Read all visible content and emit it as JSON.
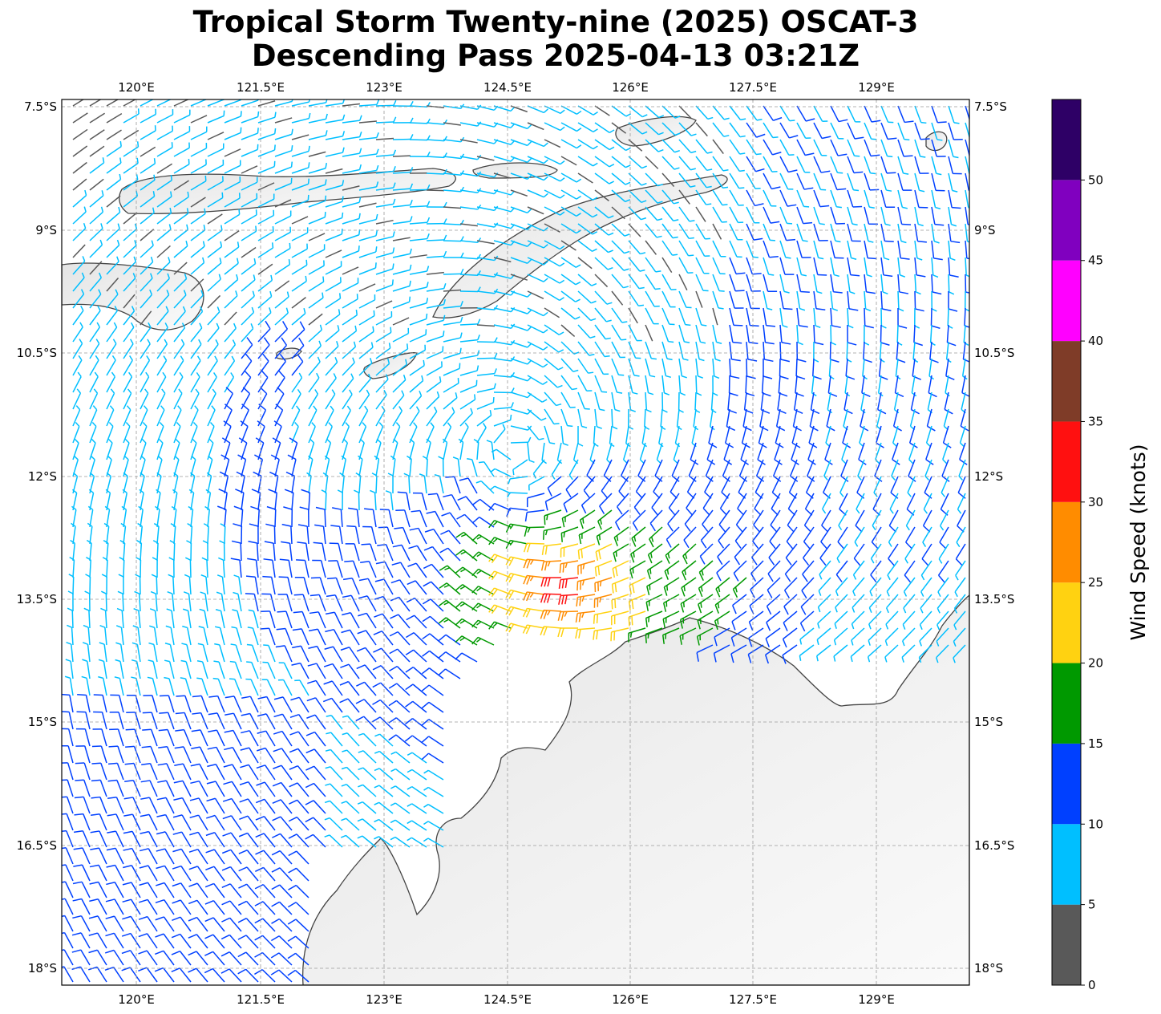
{
  "title_line1": "Tropical Storm Twenty-nine (2025) OSCAT-3",
  "title_line2": "Descending Pass 2025-04-13 03:21Z",
  "lon_ticks": [
    "120°E",
    "121.5°E",
    "123°E",
    "124.5°E",
    "126°E",
    "127.5°E",
    "129°E"
  ],
  "lat_ticks": [
    "7.5°S",
    "9°S",
    "10.5°S",
    "12°S",
    "13.5°S",
    "15°S",
    "16.5°S",
    "18°S"
  ],
  "colorbar": {
    "label": "Wind Speed (knots)",
    "ticks": [
      "0",
      "5",
      "10",
      "15",
      "20",
      "25",
      "30",
      "35",
      "40",
      "45",
      "50"
    ],
    "bins": [
      {
        "min": 0,
        "max": 5,
        "color": "#595959"
      },
      {
        "min": 5,
        "max": 10,
        "color": "#00bfff"
      },
      {
        "min": 10,
        "max": 15,
        "color": "#0040ff"
      },
      {
        "min": 15,
        "max": 20,
        "color": "#009900"
      },
      {
        "min": 20,
        "max": 25,
        "color": "#ffd211"
      },
      {
        "min": 25,
        "max": 30,
        "color": "#ff8c00"
      },
      {
        "min": 30,
        "max": 35,
        "color": "#ff1010"
      },
      {
        "min": 35,
        "max": 40,
        "color": "#7f3c28"
      },
      {
        "min": 40,
        "max": 45,
        "color": "#ff00ff"
      },
      {
        "min": 45,
        "max": 50,
        "color": "#8000bf"
      },
      {
        "min": 50,
        "max": 55,
        "color": "#2e0066"
      }
    ]
  },
  "chart_data": {
    "type": "map",
    "lon_range": [
      119.4,
      130.45
    ],
    "lat_range": [
      -18.2,
      -7.45
    ],
    "grid": true,
    "storm_center": {
      "lon": 124.9,
      "lat": -11.7
    },
    "max_wind_kt": 32,
    "wind_field": "cyclonic (clockwise) circulation, strongest winds 30-35 kt south-southeast of center near 125.6°E 13.3°S"
  }
}
